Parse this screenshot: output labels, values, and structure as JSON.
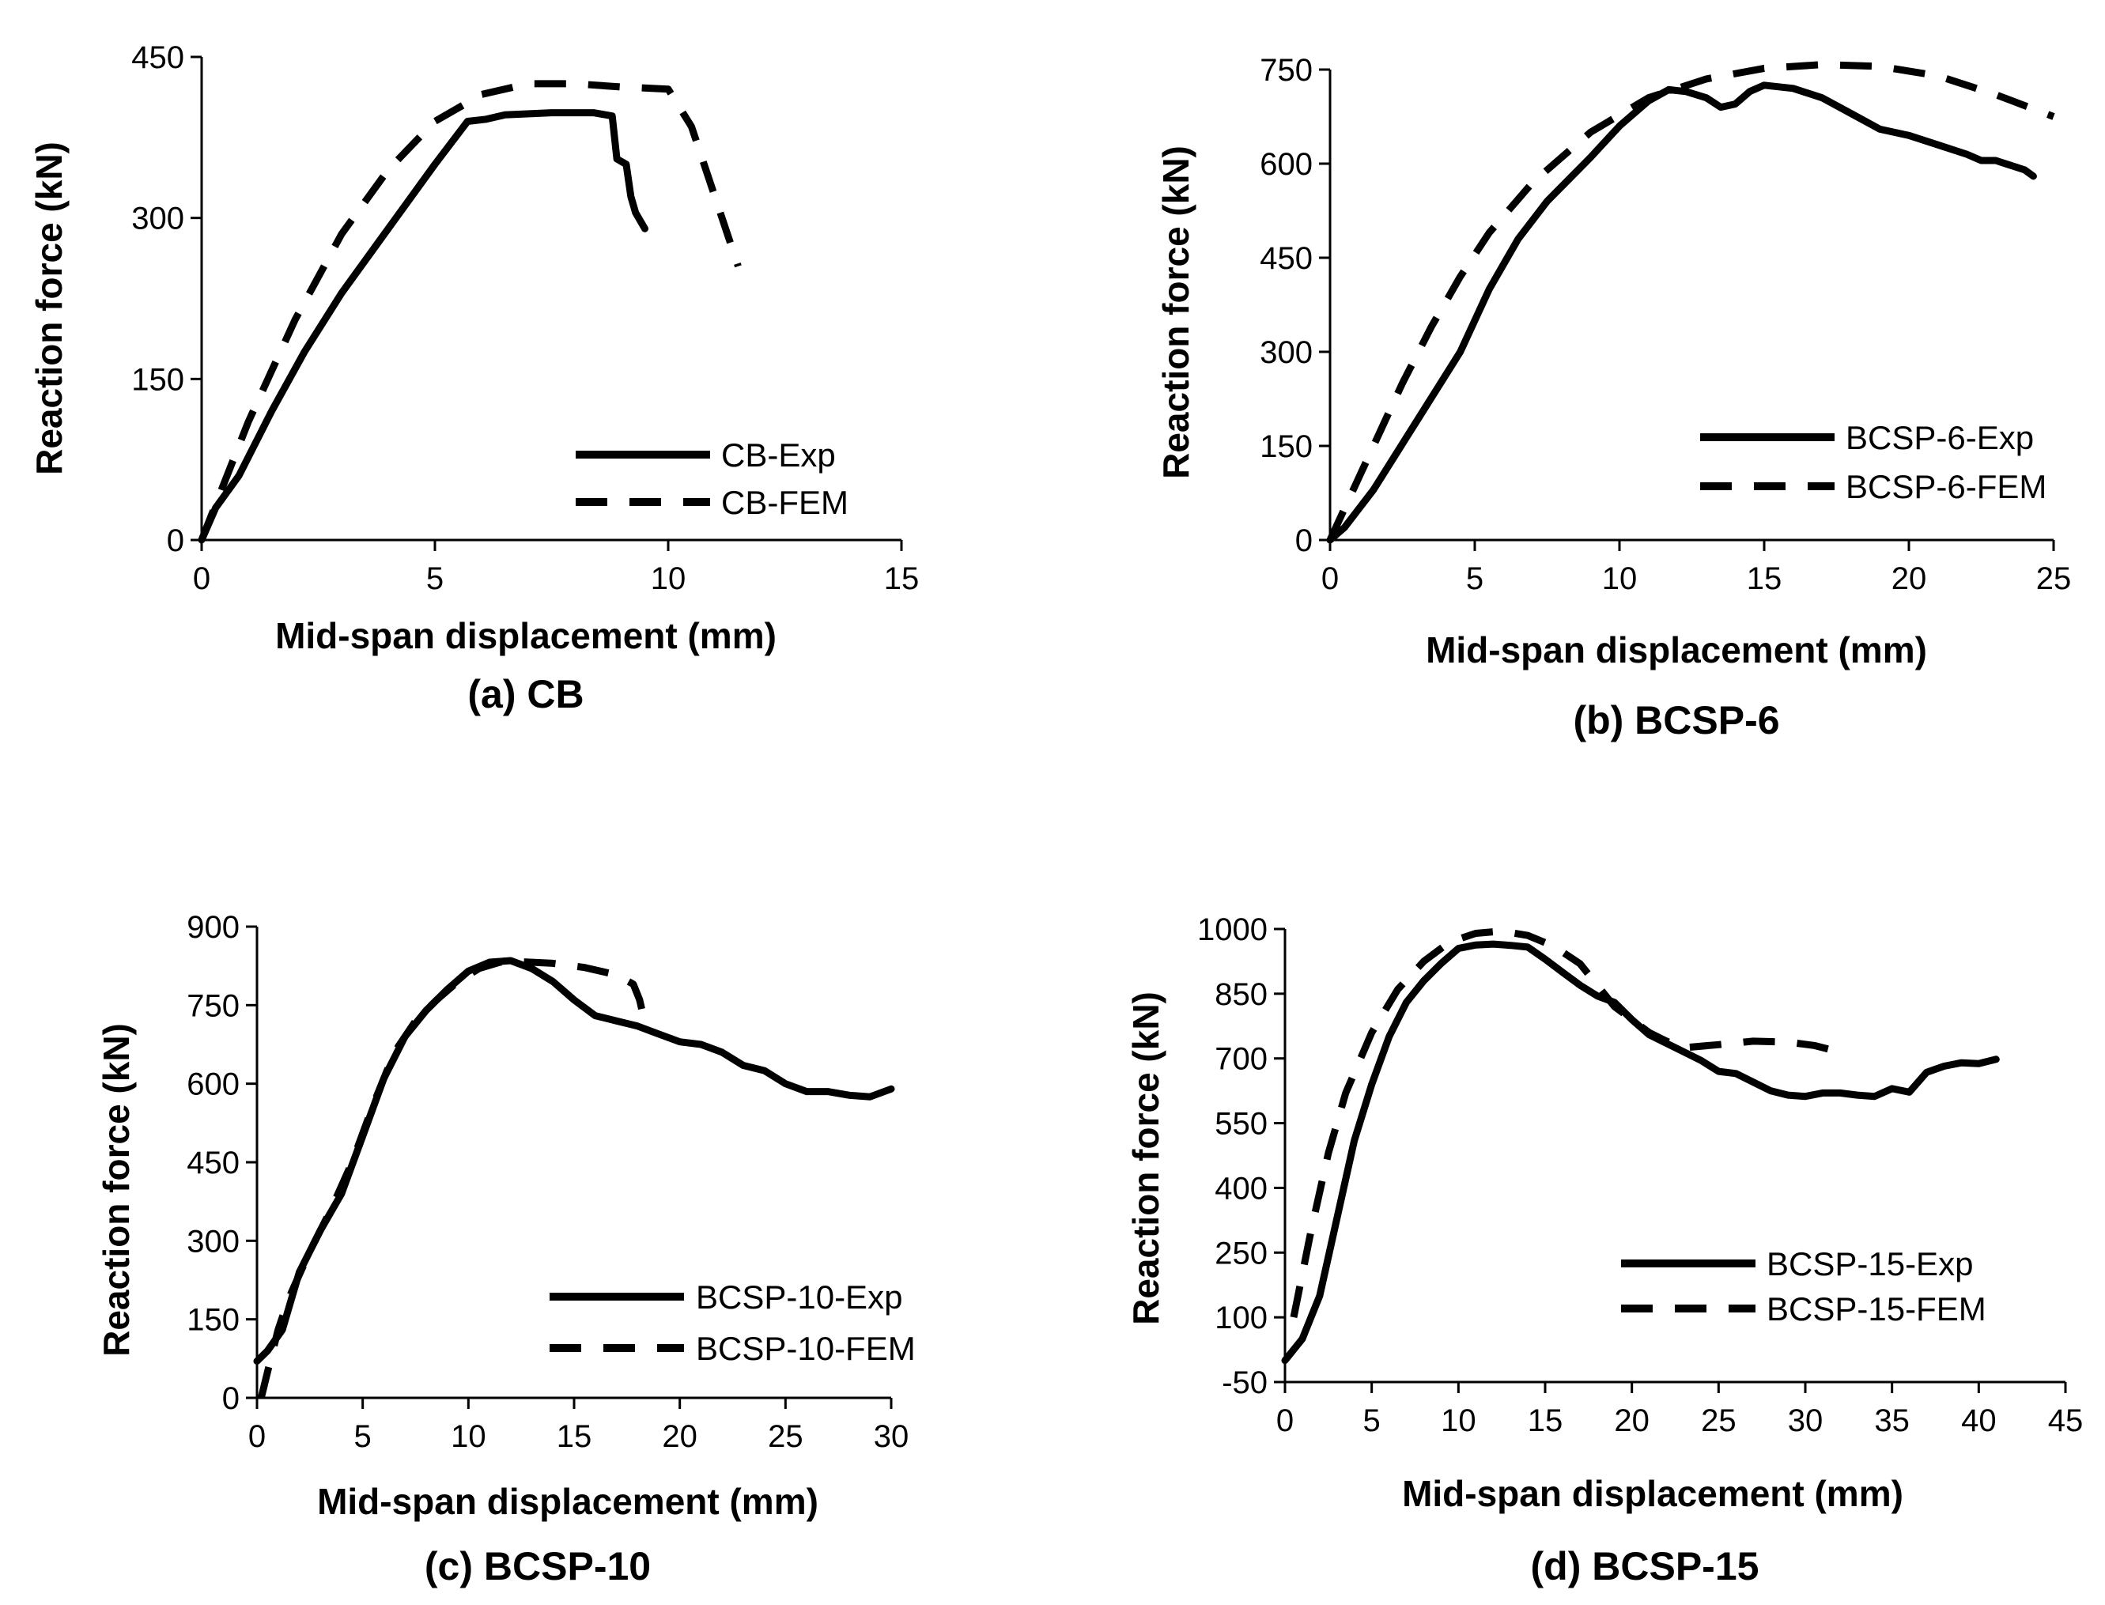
{
  "chart_data": [
    {
      "type": "line",
      "caption": "(a) CB",
      "xlabel": "Mid-span displacement (mm)",
      "ylabel": "Reaction force (kN)",
      "xlim": [
        0,
        15
      ],
      "ylim": [
        0,
        450
      ],
      "xticks": [
        0,
        5,
        10,
        15
      ],
      "yticks": [
        0,
        150,
        300,
        450
      ],
      "grid": false,
      "legend": "bottom-right",
      "series": [
        {
          "name": "CB-Exp",
          "style": "solid",
          "points": [
            [
              0,
              0
            ],
            [
              0.3,
              30
            ],
            [
              0.8,
              60
            ],
            [
              1.5,
              120
            ],
            [
              2.2,
              175
            ],
            [
              3,
              230
            ],
            [
              4,
              290
            ],
            [
              5,
              350
            ],
            [
              5.7,
              390
            ],
            [
              6.1,
              392
            ],
            [
              6.5,
              396
            ],
            [
              7.5,
              398
            ],
            [
              8.4,
              398
            ],
            [
              8.8,
              395
            ],
            [
              8.9,
              355
            ],
            [
              9.1,
              350
            ],
            [
              9.2,
              320
            ],
            [
              9.3,
              305
            ],
            [
              9.5,
              290
            ]
          ]
        },
        {
          "name": "CB-FEM",
          "style": "dashed",
          "points": [
            [
              0,
              0
            ],
            [
              0.5,
              55
            ],
            [
              1,
              110
            ],
            [
              2,
              205
            ],
            [
              3,
              285
            ],
            [
              4,
              345
            ],
            [
              5,
              390
            ],
            [
              6,
              415
            ],
            [
              7,
              425
            ],
            [
              8,
              425
            ],
            [
              9,
              422
            ],
            [
              10,
              420
            ],
            [
              10.5,
              385
            ],
            [
              11,
              320
            ],
            [
              11.5,
              255
            ]
          ]
        }
      ]
    },
    {
      "type": "line",
      "caption": "(b) BCSP-6",
      "xlabel": "Mid-span displacement (mm)",
      "ylabel": "Reaction force (kN)",
      "xlim": [
        0,
        25
      ],
      "ylim": [
        0,
        750
      ],
      "xticks": [
        0,
        5,
        10,
        15,
        20,
        25
      ],
      "yticks": [
        0,
        150,
        300,
        450,
        600,
        750
      ],
      "grid": false,
      "legend": "bottom-right",
      "series": [
        {
          "name": "BCSP-6-Exp",
          "style": "solid",
          "points": [
            [
              0,
              0
            ],
            [
              0.5,
              20
            ],
            [
              1.5,
              80
            ],
            [
              3,
              190
            ],
            [
              4.5,
              300
            ],
            [
              5.5,
              400
            ],
            [
              6.5,
              480
            ],
            [
              7.5,
              540
            ],
            [
              9,
              610
            ],
            [
              10,
              660
            ],
            [
              11,
              700
            ],
            [
              11.7,
              718
            ],
            [
              12.3,
              715
            ],
            [
              13,
              705
            ],
            [
              13.5,
              690
            ],
            [
              14,
              695
            ],
            [
              14.5,
              715
            ],
            [
              15,
              725
            ],
            [
              16,
              720
            ],
            [
              17,
              705
            ],
            [
              18,
              680
            ],
            [
              19,
              655
            ],
            [
              20,
              645
            ],
            [
              21,
              630
            ],
            [
              22,
              615
            ],
            [
              22.5,
              605
            ],
            [
              23,
              605
            ],
            [
              24,
              590
            ],
            [
              24.3,
              580
            ]
          ]
        },
        {
          "name": "BCSP-6-FEM",
          "style": "dashed",
          "points": [
            [
              0,
              0
            ],
            [
              0.5,
              50
            ],
            [
              1.5,
              150
            ],
            [
              2.5,
              250
            ],
            [
              3.5,
              340
            ],
            [
              4.5,
              420
            ],
            [
              5.5,
              490
            ],
            [
              7,
              570
            ],
            [
              9,
              650
            ],
            [
              11,
              705
            ],
            [
              13,
              735
            ],
            [
              15,
              752
            ],
            [
              17,
              758
            ],
            [
              19,
              755
            ],
            [
              21,
              740
            ],
            [
              23,
              710
            ],
            [
              25,
              675
            ]
          ]
        }
      ]
    },
    {
      "type": "line",
      "caption": "(c) BCSP-10",
      "xlabel": "Mid-span displacement (mm)",
      "ylabel": "Reaction force (kN)",
      "xlim": [
        0,
        30
      ],
      "ylim": [
        0,
        900
      ],
      "xticks": [
        0,
        5,
        10,
        15,
        20,
        25,
        30
      ],
      "yticks": [
        0,
        150,
        300,
        450,
        600,
        750,
        900
      ],
      "grid": false,
      "legend": "bottom-right",
      "series": [
        {
          "name": "BCSP-10-Exp",
          "style": "solid",
          "points": [
            [
              0,
              70
            ],
            [
              0.5,
              90
            ],
            [
              1.2,
              130
            ],
            [
              2,
              240
            ],
            [
              3,
              320
            ],
            [
              4,
              390
            ],
            [
              5,
              500
            ],
            [
              6,
              610
            ],
            [
              7,
              690
            ],
            [
              8,
              740
            ],
            [
              9,
              780
            ],
            [
              10,
              815
            ],
            [
              11,
              832
            ],
            [
              12,
              835
            ],
            [
              13,
              820
            ],
            [
              14,
              795
            ],
            [
              15,
              760
            ],
            [
              16,
              730
            ],
            [
              17,
              720
            ],
            [
              18,
              710
            ],
            [
              19,
              695
            ],
            [
              20,
              680
            ],
            [
              21,
              675
            ],
            [
              22,
              660
            ],
            [
              23,
              635
            ],
            [
              24,
              625
            ],
            [
              25,
              600
            ],
            [
              26,
              585
            ],
            [
              27,
              585
            ],
            [
              28,
              578
            ],
            [
              29,
              575
            ],
            [
              30,
              590
            ]
          ]
        },
        {
          "name": "BCSP-10-FEM",
          "style": "dashed",
          "points": [
            [
              0.2,
              0
            ],
            [
              0.5,
              50
            ],
            [
              1,
              130
            ],
            [
              1.5,
              190
            ],
            [
              2.5,
              280
            ],
            [
              3.5,
              360
            ],
            [
              4.5,
              450
            ],
            [
              5.5,
              560
            ],
            [
              6.5,
              660
            ],
            [
              7.5,
              720
            ],
            [
              8.5,
              760
            ],
            [
              9.5,
              795
            ],
            [
              10.5,
              820
            ],
            [
              11.5,
              832
            ],
            [
              12.5,
              833
            ],
            [
              14,
              830
            ],
            [
              15.5,
              822
            ],
            [
              17,
              808
            ],
            [
              17.8,
              790
            ],
            [
              18.1,
              760
            ],
            [
              18.3,
              725
            ]
          ]
        }
      ]
    },
    {
      "type": "line",
      "caption": "(d) BCSP-15",
      "xlabel": "Mid-span displacement (mm)",
      "ylabel": "Reaction force (kN)",
      "xlim": [
        0,
        45
      ],
      "ylim": [
        -50,
        1000
      ],
      "xticks": [
        0,
        5,
        10,
        15,
        20,
        25,
        30,
        35,
        40,
        45
      ],
      "yticks": [
        -50,
        100,
        250,
        400,
        550,
        700,
        850,
        1000
      ],
      "grid": false,
      "legend": "bottom-right",
      "series": [
        {
          "name": "BCSP-15-Exp",
          "style": "solid",
          "points": [
            [
              0,
              0
            ],
            [
              1,
              50
            ],
            [
              2,
              150
            ],
            [
              3,
              330
            ],
            [
              4,
              510
            ],
            [
              5,
              640
            ],
            [
              6,
              750
            ],
            [
              7,
              830
            ],
            [
              8,
              880
            ],
            [
              9,
              920
            ],
            [
              10,
              955
            ],
            [
              11,
              963
            ],
            [
              12,
              965
            ],
            [
              13,
              962
            ],
            [
              14,
              958
            ],
            [
              15,
              930
            ],
            [
              16,
              900
            ],
            [
              17,
              870
            ],
            [
              18,
              845
            ],
            [
              19,
              830
            ],
            [
              20,
              790
            ],
            [
              21,
              755
            ],
            [
              22,
              735
            ],
            [
              23,
              715
            ],
            [
              24,
              695
            ],
            [
              25,
              670
            ],
            [
              26,
              665
            ],
            [
              27,
              645
            ],
            [
              28,
              625
            ],
            [
              29,
              615
            ],
            [
              30,
              612
            ],
            [
              31,
              620
            ],
            [
              32,
              620
            ],
            [
              33,
              615
            ],
            [
              34,
              612
            ],
            [
              35,
              630
            ],
            [
              36,
              622
            ],
            [
              37,
              668
            ],
            [
              38,
              682
            ],
            [
              39,
              690
            ],
            [
              40,
              688
            ],
            [
              41,
              698
            ]
          ]
        },
        {
          "name": "BCSP-15-FEM",
          "style": "dashed",
          "points": [
            [
              0.5,
              100
            ],
            [
              1.5,
              300
            ],
            [
              2.5,
              480
            ],
            [
              3.5,
              620
            ],
            [
              5,
              760
            ],
            [
              6.5,
              860
            ],
            [
              8,
              925
            ],
            [
              9.5,
              970
            ],
            [
              11,
              990
            ],
            [
              12.5,
              995
            ],
            [
              14,
              985
            ],
            [
              15.5,
              960
            ],
            [
              17,
              920
            ],
            [
              18,
              870
            ],
            [
              19,
              820
            ],
            [
              20,
              790
            ],
            [
              21,
              760
            ],
            [
              22,
              740
            ],
            [
              23,
              725
            ],
            [
              25,
              732
            ],
            [
              27,
              740
            ],
            [
              29,
              738
            ],
            [
              30.5,
              730
            ],
            [
              31.5,
              720
            ]
          ]
        }
      ]
    }
  ]
}
